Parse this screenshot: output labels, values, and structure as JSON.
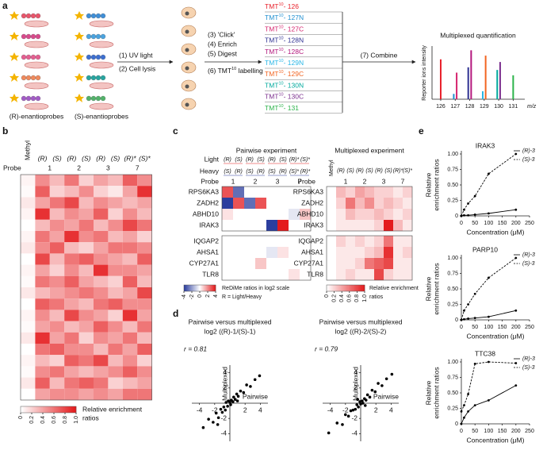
{
  "panel_labels": [
    "a",
    "b",
    "c",
    "d",
    "e"
  ],
  "a": {
    "probe_groups": [
      "(R)-enantioprobes",
      "(S)-enantioprobes"
    ],
    "steps_1": [
      "(1) UV light",
      "(2) Cell lysis"
    ],
    "steps_2": [
      "(3) 'Click'",
      "(4) Enrich",
      "(5) Digest"
    ],
    "step_6": {
      "text": "(6) TMT",
      "sup": "10",
      "rest": " labelling"
    },
    "step_7": "(7) Combine",
    "tmt": {
      "base": "TMT",
      "sup": "10",
      "channels": [
        {
          "label": "- 126",
          "color": "#e8202a"
        },
        {
          "label": "- 127N",
          "color": "#1f8fd0"
        },
        {
          "label": "- 127C",
          "color": "#d6246e"
        },
        {
          "label": "- 128N",
          "color": "#2e3192"
        },
        {
          "label": "- 128C",
          "color": "#b3177c"
        },
        {
          "label": "- 129N",
          "color": "#29b6e6"
        },
        {
          "label": "- 129C",
          "color": "#f26522"
        },
        {
          "label": "- 130N",
          "color": "#00a99d"
        },
        {
          "label": "- 130C",
          "color": "#7b2f8e"
        },
        {
          "label": "- 131",
          "color": "#2bb34a"
        }
      ]
    },
    "quant": {
      "type": "bar",
      "title": "Multiplexed quantification",
      "ylabel": "Reporter ions intensity",
      "xunit": "m/z",
      "xlim": [
        125.4,
        131.8
      ],
      "xticks": [
        126,
        127,
        128,
        129,
        130,
        131
      ],
      "ylim": [
        0,
        1
      ],
      "x": [
        126,
        126.9,
        127.1,
        127.9,
        128.1,
        128.9,
        129.1,
        129.9,
        130.1,
        131
      ],
      "values": [
        0.75,
        0.1,
        0.5,
        0.6,
        0.92,
        0.15,
        0.82,
        0.55,
        0.7,
        0.45
      ],
      "colors": [
        "#e8202a",
        "#1f8fd0",
        "#d6246e",
        "#2e3192",
        "#b3177c",
        "#29b6e6",
        "#f26522",
        "#00a99d",
        "#7b2f8e",
        "#2bb34a"
      ]
    }
  },
  "b": {
    "type": "heatmap",
    "probe_label": "Probe",
    "columns": [
      "Methyl",
      "(R)",
      "(S)",
      "(R)",
      "(S)",
      "(R)",
      "(S)",
      "(R)*",
      "(S)*"
    ],
    "probes": [
      "1",
      "2",
      "3",
      "7"
    ],
    "colormap": [
      "#ffffff",
      "#e41a1c"
    ],
    "clim": [
      0,
      1
    ],
    "matrix": [
      [
        0.05,
        0.5,
        0.3,
        0.6,
        0.2,
        0.4,
        0.3,
        0.7,
        0.5
      ],
      [
        0.02,
        0.7,
        0.2,
        0.3,
        0.5,
        0.2,
        0.1,
        0.4,
        0.9
      ],
      [
        0.1,
        0.4,
        0.6,
        0.8,
        0.3,
        0.5,
        0.4,
        0.3,
        0.4
      ],
      [
        0.05,
        0.9,
        0.3,
        0.5,
        0.4,
        0.7,
        0.2,
        0.5,
        0.3
      ],
      [
        0,
        0.3,
        0.5,
        0.4,
        0.6,
        0.3,
        0.5,
        0.8,
        0.6
      ],
      [
        0.05,
        0.6,
        0.4,
        0.9,
        0.5,
        0.6,
        0.3,
        0.4,
        0.2
      ],
      [
        0.1,
        0.5,
        0.7,
        0.3,
        0.2,
        0.4,
        0.6,
        0.6,
        0.5
      ],
      [
        0,
        0.8,
        0.3,
        0.6,
        0.7,
        0.5,
        0.4,
        0.3,
        0.7
      ],
      [
        0.05,
        0.4,
        0.2,
        0.5,
        0.3,
        0.9,
        0.5,
        0.5,
        0.4
      ],
      [
        0.02,
        0.6,
        0.5,
        0.7,
        0.4,
        0.3,
        0.2,
        0.7,
        0.3
      ],
      [
        0.1,
        0.3,
        0.4,
        0.5,
        0.6,
        0.5,
        0.3,
        0.4,
        0.8
      ],
      [
        0,
        0.7,
        0.6,
        0.4,
        0.3,
        0.6,
        0.7,
        0.5,
        0.5
      ],
      [
        0.05,
        0.5,
        0.3,
        0.8,
        0.5,
        0.4,
        0.2,
        0.9,
        0.4
      ],
      [
        0.02,
        0.4,
        0.5,
        0.3,
        0.4,
        0.7,
        0.5,
        0.3,
        0.6
      ],
      [
        0.1,
        0.9,
        0.4,
        0.6,
        0.2,
        0.5,
        0.4,
        0.6,
        0.3
      ],
      [
        0,
        0.6,
        0.7,
        0.5,
        0.5,
        0.3,
        0.6,
        0.4,
        0.7
      ],
      [
        0.05,
        0.3,
        0.2,
        0.7,
        0.6,
        0.8,
        0.3,
        0.5,
        0.2
      ],
      [
        0.02,
        0.5,
        0.6,
        0.4,
        0.3,
        0.4,
        0.5,
        0.7,
        0.5
      ],
      [
        0.1,
        0.7,
        0.3,
        0.6,
        0.7,
        0.6,
        0.2,
        0.3,
        0.4
      ],
      [
        0,
        0.4,
        0.5,
        0.5,
        0.4,
        0.5,
        0.4,
        0.6,
        0.6
      ]
    ],
    "colorbar": {
      "ticks": [
        0,
        0.2,
        0.4,
        0.6,
        0.8,
        {
          "value": 1,
          "label": "1.0"
        }
      ],
      "label": [
        "Relative enrichment",
        "ratios"
      ]
    }
  },
  "c": {
    "pairwise": {
      "type": "heatmap",
      "title": "Pairwise experiment",
      "light_label": "Light",
      "light_color": "#e41a1c",
      "light": [
        "(R)",
        "(S)",
        "(R)",
        "(S)",
        "(R)",
        "(S)",
        "(R)*",
        "(S)*"
      ],
      "heavy_label": "Heavy",
      "heavy_color": "#2c3e9e",
      "heavy": [
        "(S)",
        "(R)",
        "(S)",
        "(R)",
        "(S)",
        "(R)",
        "(S)*",
        "(R)*"
      ],
      "probe_label": "Probe",
      "probes": [
        "1",
        "2",
        "3",
        "7"
      ],
      "genes": [
        [
          "RPS6KA3",
          "ZADH2",
          "ABHD10",
          "IRAK3"
        ],
        [
          "IQGAP2",
          "AHSA1",
          "CYP27A1",
          "TLR8"
        ]
      ],
      "colormap": [
        "#2c3e9e",
        "#ffffff",
        "#e41a1c"
      ],
      "clim": [
        -4,
        4
      ],
      "matrix": [
        [
          [
            3,
            -3,
            0,
            0,
            0,
            0,
            0,
            0
          ],
          [
            -4,
            3,
            -3,
            3,
            0,
            0,
            0,
            0
          ],
          [
            0.5,
            0,
            0,
            0,
            0,
            0,
            -0.5,
            1
          ],
          [
            0,
            0,
            0,
            0,
            -4,
            4,
            0,
            0
          ]
        ],
        [
          [
            0,
            0,
            0,
            0,
            0,
            0,
            0,
            0
          ],
          [
            0,
            0,
            0,
            0,
            -0.5,
            0.5,
            0,
            0
          ],
          [
            0,
            0,
            0,
            1,
            0,
            0,
            0,
            0
          ],
          [
            0,
            0,
            0,
            0,
            0,
            0,
            0.5,
            0
          ]
        ]
      ],
      "colorbar": {
        "ticks": [
          -4,
          -2,
          0,
          2,
          4
        ],
        "label": [
          "ReDiMe ratios in log2 scale",
          "R = Light/Heavy"
        ]
      }
    },
    "multiplexed": {
      "type": "heatmap",
      "title": "Multiplexed experiment",
      "columns": [
        "Methyl",
        "(R)",
        "(S)",
        "(R)",
        "(S)",
        "(R)",
        "(S)",
        "(R)*",
        "(S)*"
      ],
      "probe_label": "Probe",
      "probes": [
        "1",
        "2",
        "3",
        "7"
      ],
      "genes": [
        [
          "RPS6KA3",
          "ZADH2",
          "ABHD10",
          "IRAK3"
        ],
        [
          "IQGAP2",
          "AHSA1",
          "CYP27A1",
          "TLR8"
        ]
      ],
      "colormap": [
        "#ffffff",
        "#e41a1c"
      ],
      "clim": [
        0,
        1
      ],
      "matrix": [
        [
          [
            0,
            0.3,
            0.2,
            0.4,
            0.3,
            0.2,
            0.2,
            0.1,
            0.2
          ],
          [
            0,
            0.2,
            0.6,
            0.3,
            0.5,
            0.2,
            0.3,
            0.2,
            0.1
          ],
          [
            0,
            0.1,
            0.3,
            0.2,
            0.2,
            0.3,
            0.2,
            0.1,
            0.2
          ],
          [
            0,
            0.1,
            0.1,
            0.1,
            0.1,
            0.2,
            1,
            0.3,
            0.1
          ]
        ],
        [
          [
            0,
            0.2,
            0.1,
            0.2,
            0.1,
            0.2,
            0.6,
            0.1,
            0.1
          ],
          [
            0,
            0.1,
            0.1,
            0.1,
            0.2,
            0.3,
            0.9,
            0.1,
            0.2
          ],
          [
            0,
            0.1,
            0.1,
            0.2,
            0.6,
            0.7,
            0.8,
            0.1,
            0.1
          ],
          [
            0,
            0.1,
            0.2,
            0.1,
            0.1,
            0.8,
            0.2,
            0.1,
            0.1
          ]
        ]
      ],
      "colorbar": {
        "ticks": [
          0,
          0.2,
          0.4,
          0.6,
          0.8,
          {
            "value": 1,
            "label": "1.0"
          }
        ],
        "label": [
          "Relative enrichment",
          "ratios"
        ]
      }
    }
  },
  "d": {
    "plots": [
      {
        "type": "scatter",
        "title": [
          "Pairwise versus multiplexed",
          "log2 ((R)-1/(S)-1)"
        ],
        "r_label": "r = 0.81",
        "xlabel": "Pairwise",
        "ylabel": "Multiplexed",
        "xlim": [
          -5,
          5
        ],
        "ylim": [
          -5,
          5
        ],
        "xticks": [
          -4,
          -2,
          2,
          4
        ],
        "yticks": [
          -4,
          -2,
          2,
          4
        ],
        "color": "#000000",
        "x": [
          -3.5,
          -2.8,
          -2.2,
          -1.8,
          -1.5,
          -1.2,
          -1,
          -0.8,
          -0.6,
          -0.5,
          -0.3,
          -0.2,
          0,
          0.1,
          0.2,
          0.4,
          0.5,
          0.7,
          0.9,
          1.1,
          1.4,
          1.8,
          2.2,
          2.7,
          3.3,
          3.9,
          1,
          -1.6
        ],
        "y": [
          -3.2,
          -2.1,
          -2.5,
          -1.3,
          -1.9,
          -0.8,
          -1.2,
          -0.5,
          -0.9,
          0.1,
          -0.4,
          0.3,
          0.1,
          -0.2,
          0.4,
          0.2,
          0.8,
          0.5,
          1.2,
          0.9,
          1.6,
          1.4,
          2.4,
          2.2,
          3.1,
          3.6,
          0.3,
          -2.8
        ]
      },
      {
        "type": "scatter",
        "title": [
          "Pairwise versus multiplexed",
          "log2 ((R)-2/(S)-2)"
        ],
        "r_label": "r = 0.79",
        "xlabel": "Pairwise",
        "ylabel": "Multiplexed",
        "xlim": [
          -5,
          5
        ],
        "ylim": [
          -5,
          5
        ],
        "xticks": [
          -4,
          -2,
          2,
          4
        ],
        "yticks": [
          -4,
          -2,
          2,
          4
        ],
        "color": "#000000",
        "x": [
          -4.2,
          -3.1,
          -2.4,
          -2,
          -1.6,
          -1.3,
          -1,
          -0.7,
          -0.5,
          -0.3,
          -0.1,
          0,
          0.2,
          0.3,
          0.5,
          0.7,
          0.9,
          1.2,
          1.5,
          1.9,
          2.3,
          2.8,
          3.4,
          4.1,
          0.6,
          -0.4
        ],
        "y": [
          -3.9,
          -2.6,
          -2.8,
          -1.5,
          -1.7,
          -1,
          -0.9,
          -0.8,
          -0.2,
          -0.5,
          0.2,
          -0.1,
          0.3,
          0,
          0.6,
          0.4,
          1.1,
          0.8,
          1.7,
          1.5,
          2.6,
          2.3,
          3.2,
          3.8,
          -0.3,
          0.5
        ]
      }
    ]
  },
  "e": {
    "charts": [
      {
        "type": "line",
        "title": "IRAK3",
        "ylabel": [
          "Relative",
          "enrichment ratios"
        ],
        "xlabel": "Concentration (μM)",
        "xlim": [
          0,
          250
        ],
        "xticks": [
          0,
          50,
          100,
          150,
          200,
          250
        ],
        "ylim": [
          0,
          1
        ],
        "yticks": [
          0,
          0.25,
          {
            "value": 0.5,
            "label": "0.50"
          },
          0.75,
          {
            "value": 1,
            "label": "1.00"
          }
        ],
        "x": [
          0,
          10,
          25,
          50,
          100,
          200
        ],
        "series": [
          {
            "name": "(R)-3",
            "color": "#000000",
            "line_style": "solid",
            "values": [
              0,
              0.01,
              0.01,
              0.02,
              0.04,
              0.1
            ]
          },
          {
            "name": "(S)-3",
            "color": "#000000",
            "line_style": "dashed",
            "values": [
              0,
              0.1,
              0.2,
              0.32,
              0.68,
              1
            ]
          }
        ]
      },
      {
        "type": "line",
        "title": "PARP10",
        "ylabel": [
          "Relative",
          "enrichment ratios"
        ],
        "xlabel": "Concentration (μM)",
        "xlim": [
          0,
          250
        ],
        "xticks": [
          0,
          50,
          100,
          150,
          200,
          250
        ],
        "ylim": [
          0,
          1
        ],
        "yticks": [
          0,
          0.25,
          {
            "value": 0.5,
            "label": "0.50"
          },
          0.75,
          {
            "value": 1,
            "label": "1.00"
          }
        ],
        "x": [
          0,
          10,
          25,
          50,
          100,
          200
        ],
        "series": [
          {
            "name": "(R)-3",
            "color": "#000000",
            "line_style": "solid",
            "values": [
              0,
              0.01,
              0.02,
              0.03,
              0.05,
              0.15
            ]
          },
          {
            "name": "(S)-3",
            "color": "#000000",
            "line_style": "dashed",
            "values": [
              0,
              0.15,
              0.25,
              0.42,
              0.68,
              1
            ]
          }
        ]
      },
      {
        "type": "line",
        "title": "TTC38",
        "ylabel": [
          "Relative",
          "enrichment ratios"
        ],
        "xlabel": "Concentration (μM)",
        "xlim": [
          0,
          250
        ],
        "xticks": [
          0,
          50,
          100,
          150,
          200,
          250
        ],
        "ylim": [
          0,
          1
        ],
        "yticks": [
          0,
          0.25,
          {
            "value": 0.5,
            "label": "0.50"
          },
          0.75,
          {
            "value": 1,
            "label": "1.00"
          }
        ],
        "x": [
          0,
          10,
          25,
          50,
          100,
          200
        ],
        "series": [
          {
            "name": "(R)-3",
            "color": "#000000",
            "line_style": "solid",
            "values": [
              0,
              0.1,
              0.2,
              0.3,
              0.38,
              0.62
            ]
          },
          {
            "name": "(S)-3",
            "color": "#000000",
            "line_style": "dashed",
            "values": [
              0.2,
              0.3,
              0.48,
              0.97,
              1,
              0.98
            ]
          }
        ]
      }
    ]
  }
}
